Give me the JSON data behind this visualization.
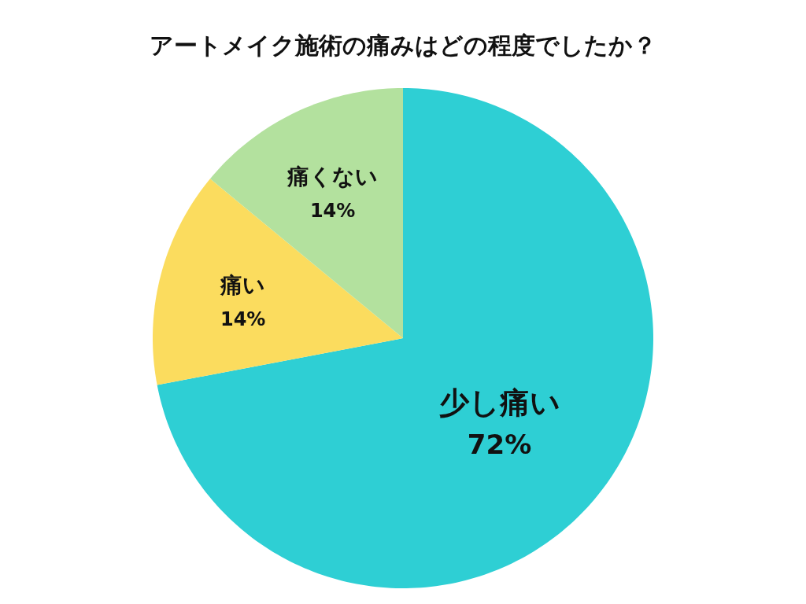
{
  "chart_data": {
    "type": "pie",
    "title": "アートメイク施術の痛みはどの程度でしたか？",
    "categories": [
      "少し痛い",
      "痛い",
      "痛くない"
    ],
    "values": [
      72,
      14,
      14
    ],
    "colors": [
      "#2ecfd4",
      "#fbdc5e",
      "#b3e19e"
    ],
    "value_labels": [
      "72%",
      "14%",
      "14%"
    ]
  }
}
